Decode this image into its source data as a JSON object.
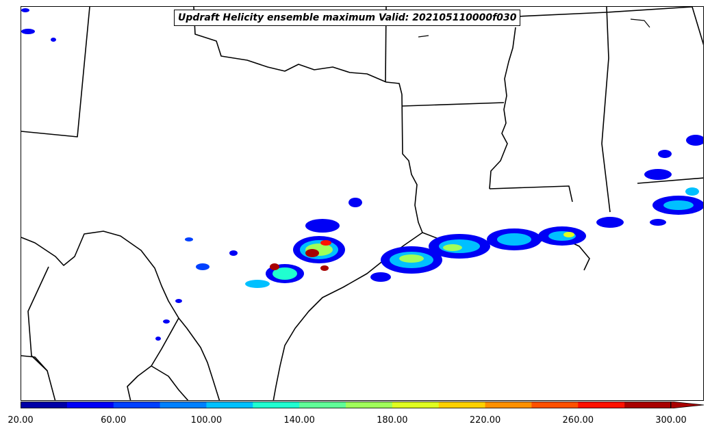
{
  "title": "Updraft Helicity ensemble maximum Valid: 202105110000f030",
  "colorbar": {
    "levels": [
      20,
      40,
      60,
      80,
      100,
      120,
      140,
      160,
      180,
      200,
      220,
      240,
      260,
      280,
      300
    ],
    "colors": [
      "#0000a6",
      "#0000f5",
      "#0040ff",
      "#0080ff",
      "#00c0ff",
      "#20ffd0",
      "#60ff98",
      "#a0ff5a",
      "#e0ff20",
      "#ffd000",
      "#ff9000",
      "#ff5000",
      "#ff1000",
      "#a80000"
    ],
    "tick_labels": [
      "20.00",
      "60.00",
      "100.00",
      "140.00",
      "180.00",
      "220.00",
      "260.00",
      "300.00"
    ],
    "extend": "max"
  },
  "icons": {
    "outline_color": "#000000"
  }
}
